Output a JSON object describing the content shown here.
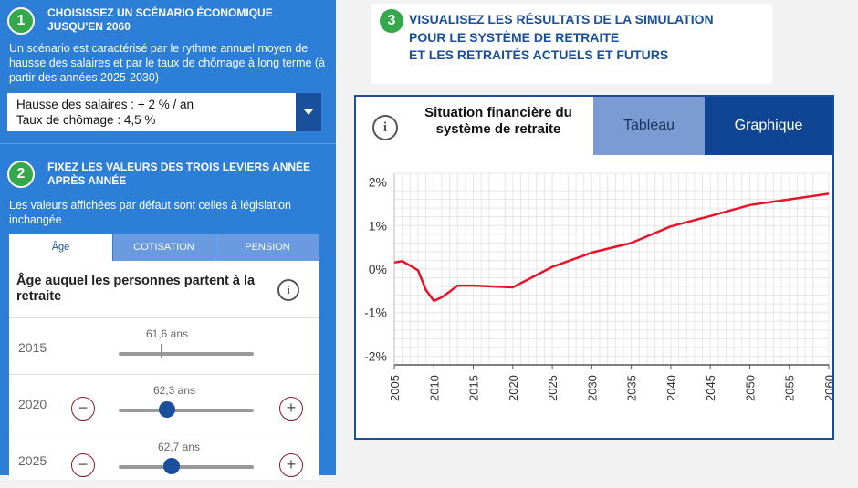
{
  "step1": {
    "number": "1",
    "title": "Choisissez un scénario économique jusqu'en 2060",
    "description": "Un scénario est caractérisé par le rythme annuel moyen de hausse des salaires et par le taux de chômage à long terme (à partir des années 2025-2030)",
    "select_line1": "Hausse des salaires : + 2 % / an",
    "select_line2": "Taux de chômage : 4,5 %"
  },
  "step2": {
    "number": "2",
    "title": "Fixez les valeurs des trois leviers année après année",
    "description": "Les valeurs affichées par défaut sont celles à législation inchangée",
    "tabs": [
      "Âge",
      "Cotisation",
      "Pension"
    ],
    "panel_title": "Âge auquel les personnes partent à la retraite",
    "info_label": "i",
    "rows": [
      {
        "year": "2015",
        "value": "61,6 ans",
        "level": 0.32
      },
      {
        "year": "2020",
        "value": "62,3 ans",
        "level": 0.36
      },
      {
        "year": "2025",
        "value": "62,7 ans",
        "level": 0.39
      }
    ],
    "minus": "−",
    "plus": "+"
  },
  "step3": {
    "number": "3",
    "title_line1": "Visualisez les résultats de la simulation",
    "title_line2": "pour le système de retraite",
    "title_line3": "et les retraités actuels et futurs"
  },
  "chart_header": {
    "info_label": "i",
    "title": "Situation financière du système de retraite",
    "tab_table": "Tableau",
    "tab_chart": "Graphique"
  },
  "colors": {
    "line": "#e8132a",
    "accent": "#1a4f9c",
    "left_bg": "#2c7ed6",
    "green": "#35a84b"
  },
  "chart_data": {
    "type": "line",
    "title": "",
    "xlabel": "",
    "ylabel": "",
    "x_ticks": [
      "2005",
      "2010",
      "2015",
      "2020",
      "2025",
      "2030",
      "2035",
      "2040",
      "2045",
      "2050",
      "2055",
      "2060"
    ],
    "y_ticks": [
      "-2%",
      "-1%",
      "0%",
      "1%",
      "2%"
    ],
    "xlim": [
      2005,
      2060
    ],
    "ylim": [
      -2.2,
      2.2
    ],
    "grid": true,
    "series": [
      {
        "x": [
          2005,
          2006,
          2007,
          2008,
          2009,
          2010,
          2011,
          2012,
          2013,
          2015,
          2020,
          2025,
          2030,
          2035,
          2040,
          2045,
          2050,
          2055,
          2060
        ],
        "y": [
          0.15,
          0.18,
          0.08,
          -0.03,
          -0.48,
          -0.73,
          -0.65,
          -0.52,
          -0.38,
          -0.38,
          -0.42,
          0.05,
          0.38,
          0.6,
          0.98,
          1.22,
          1.47,
          1.6,
          1.73
        ]
      }
    ]
  }
}
